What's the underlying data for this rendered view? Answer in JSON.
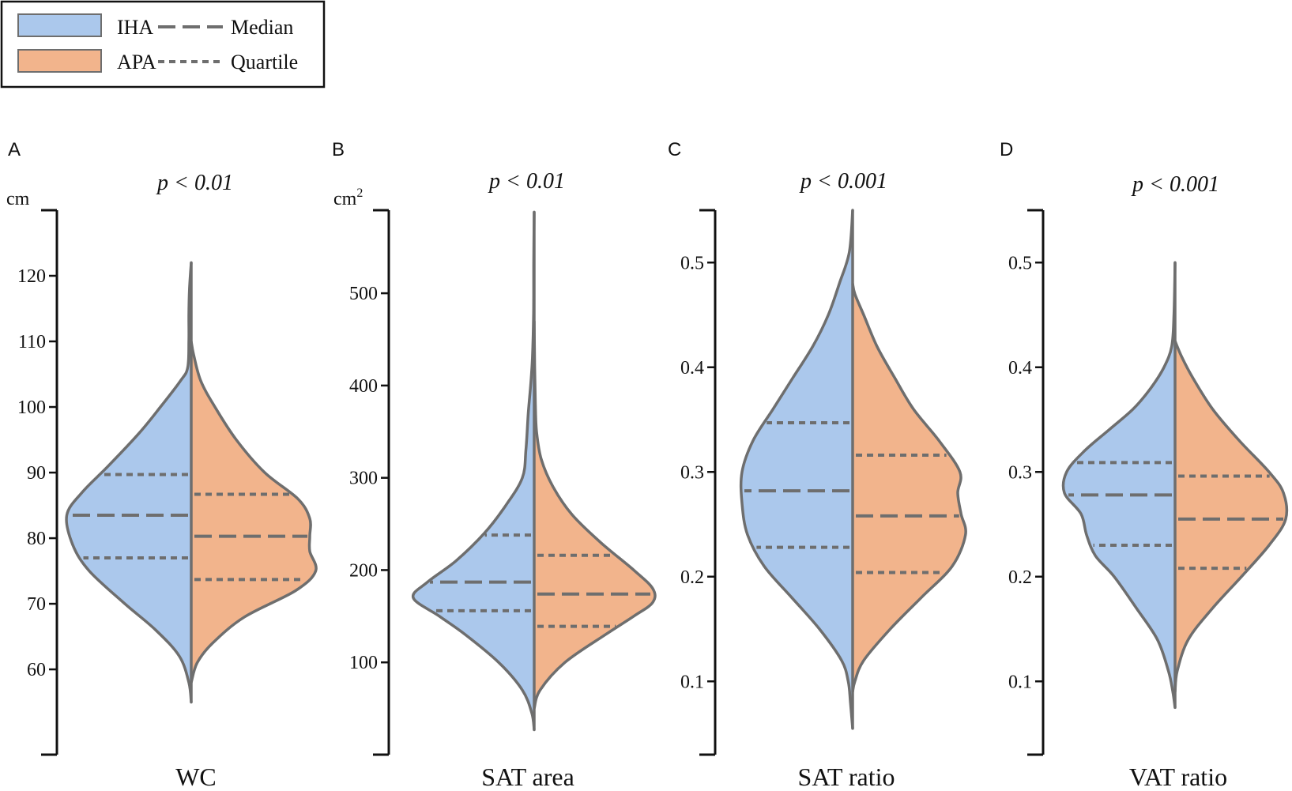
{
  "legend": {
    "entries": [
      {
        "label": "IHA",
        "kind": "patch",
        "color": "#abc8ec"
      },
      {
        "label": "APA",
        "kind": "patch",
        "color": "#f2b48c"
      },
      {
        "label": "Median",
        "kind": "line",
        "dash": "long"
      },
      {
        "label": "Quartile",
        "kind": "line",
        "dash": "short"
      }
    ]
  },
  "colors": {
    "IHA": "#abc8ec",
    "APA": "#f2b48c",
    "outline": "#6e6e6e",
    "axis": "#111111"
  },
  "chart_data": [
    {
      "panel": "A",
      "type": "violin",
      "title": "p < 0.01",
      "xlabel": "WC",
      "unit": "cm",
      "unit_sup": "",
      "ylim": [
        47,
        130
      ],
      "yticks": [
        60,
        70,
        80,
        90,
        100,
        110,
        120
      ],
      "tick_labels": [
        "60",
        "70",
        "80",
        "90",
        "100",
        "110",
        "120"
      ],
      "iha": {
        "median": 83.5,
        "q1": 77,
        "q3": 89.7,
        "profile": [
          [
            55,
            0
          ],
          [
            58,
            0.02
          ],
          [
            62,
            0.1
          ],
          [
            66,
            0.3
          ],
          [
            70,
            0.56
          ],
          [
            75,
            0.86
          ],
          [
            79,
            1.0
          ],
          [
            83.5,
            1.05
          ],
          [
            87,
            0.92
          ],
          [
            91,
            0.7
          ],
          [
            96,
            0.44
          ],
          [
            100,
            0.26
          ],
          [
            104,
            0.09
          ],
          [
            106,
            0.03
          ],
          [
            110,
            0.02
          ],
          [
            114,
            0.02
          ],
          [
            118,
            0.015
          ],
          [
            122,
            0
          ]
        ]
      },
      "apa": {
        "median": 80.3,
        "q1": 73.7,
        "q3": 86.7,
        "profile": [
          [
            58,
            0
          ],
          [
            61,
            0.05
          ],
          [
            64,
            0.18
          ],
          [
            68,
            0.45
          ],
          [
            72,
            0.88
          ],
          [
            75,
            1.05
          ],
          [
            78,
            1.0
          ],
          [
            80.3,
            1.0
          ],
          [
            83,
            1.0
          ],
          [
            86,
            0.9
          ],
          [
            90,
            0.62
          ],
          [
            95,
            0.38
          ],
          [
            100,
            0.2
          ],
          [
            104,
            0.08
          ],
          [
            108,
            0.02
          ],
          [
            110,
            0
          ]
        ]
      }
    },
    {
      "panel": "B",
      "type": "violin",
      "title": "p < 0.01",
      "xlabel": "SAT area",
      "unit": "cm",
      "unit_sup": "2",
      "ylim": [
        0,
        590
      ],
      "yticks": [
        100,
        200,
        300,
        400,
        500
      ],
      "tick_labels": [
        "100",
        "200",
        "300",
        "400",
        "500"
      ],
      "iha": {
        "median": 187,
        "q1": 156,
        "q3": 238,
        "profile": [
          [
            27,
            0
          ],
          [
            45,
            0.02
          ],
          [
            70,
            0.1
          ],
          [
            100,
            0.3
          ],
          [
            130,
            0.58
          ],
          [
            150,
            0.8
          ],
          [
            170,
            1.02
          ],
          [
            187,
            0.9
          ],
          [
            210,
            0.66
          ],
          [
            240,
            0.42
          ],
          [
            270,
            0.24
          ],
          [
            300,
            0.1
          ],
          [
            330,
            0.07
          ],
          [
            370,
            0.05
          ],
          [
            400,
            0.03
          ],
          [
            430,
            0.015
          ],
          [
            480,
            0.005
          ],
          [
            530,
            0.004
          ],
          [
            588,
            0
          ]
        ]
      },
      "apa": {
        "median": 174,
        "q1": 139,
        "q3": 216,
        "profile": [
          [
            50,
            0
          ],
          [
            70,
            0.05
          ],
          [
            100,
            0.26
          ],
          [
            130,
            0.6
          ],
          [
            150,
            0.84
          ],
          [
            165,
            1.0
          ],
          [
            180,
            1.0
          ],
          [
            200,
            0.84
          ],
          [
            230,
            0.56
          ],
          [
            260,
            0.32
          ],
          [
            290,
            0.16
          ],
          [
            320,
            0.06
          ],
          [
            350,
            0.02
          ],
          [
            380,
            0.01
          ],
          [
            420,
            0.004
          ],
          [
            470,
            0
          ]
        ]
      }
    },
    {
      "panel": "C",
      "type": "violin",
      "title": "p < 0.001",
      "xlabel": "SAT ratio",
      "unit": "",
      "unit_sup": "",
      "ylim": [
        0.03,
        0.55
      ],
      "yticks": [
        0.1,
        0.2,
        0.3,
        0.4,
        0.5
      ],
      "tick_labels": [
        "0.1",
        "0.2",
        "0.3",
        "0.4",
        "0.5"
      ],
      "iha": {
        "median": 0.282,
        "q1": 0.228,
        "q3": 0.347,
        "profile": [
          [
            0.055,
            0
          ],
          [
            0.08,
            0.02
          ],
          [
            0.1,
            0.04
          ],
          [
            0.12,
            0.1
          ],
          [
            0.15,
            0.3
          ],
          [
            0.18,
            0.55
          ],
          [
            0.21,
            0.8
          ],
          [
            0.24,
            0.95
          ],
          [
            0.27,
            1.0
          ],
          [
            0.3,
            1.0
          ],
          [
            0.33,
            0.9
          ],
          [
            0.36,
            0.72
          ],
          [
            0.39,
            0.54
          ],
          [
            0.42,
            0.36
          ],
          [
            0.45,
            0.22
          ],
          [
            0.48,
            0.12
          ],
          [
            0.51,
            0.03
          ],
          [
            0.55,
            0
          ]
        ]
      },
      "apa": {
        "median": 0.258,
        "q1": 0.204,
        "q3": 0.316,
        "profile": [
          [
            0.09,
            0
          ],
          [
            0.1,
            0.02
          ],
          [
            0.12,
            0.1
          ],
          [
            0.15,
            0.34
          ],
          [
            0.18,
            0.62
          ],
          [
            0.21,
            0.9
          ],
          [
            0.24,
            1.02
          ],
          [
            0.26,
            0.98
          ],
          [
            0.28,
            0.95
          ],
          [
            0.3,
            0.97
          ],
          [
            0.33,
            0.78
          ],
          [
            0.36,
            0.55
          ],
          [
            0.39,
            0.38
          ],
          [
            0.42,
            0.22
          ],
          [
            0.45,
            0.1
          ],
          [
            0.47,
            0.02
          ],
          [
            0.48,
            0
          ]
        ]
      }
    },
    {
      "panel": "D",
      "type": "violin",
      "title": "p < 0.001",
      "xlabel": "VAT ratio",
      "unit": "",
      "unit_sup": "",
      "ylim": [
        0.03,
        0.55
      ],
      "yticks": [
        0.1,
        0.2,
        0.3,
        0.4,
        0.5
      ],
      "tick_labels": [
        "0.1",
        "0.2",
        "0.3",
        "0.4",
        "0.5"
      ],
      "iha": {
        "median": 0.278,
        "q1": 0.23,
        "q3": 0.309,
        "profile": [
          [
            0.075,
            0
          ],
          [
            0.09,
            0.02
          ],
          [
            0.11,
            0.06
          ],
          [
            0.14,
            0.16
          ],
          [
            0.17,
            0.35
          ],
          [
            0.2,
            0.55
          ],
          [
            0.22,
            0.72
          ],
          [
            0.24,
            0.8
          ],
          [
            0.26,
            0.85
          ],
          [
            0.28,
            1.0
          ],
          [
            0.3,
            0.98
          ],
          [
            0.32,
            0.82
          ],
          [
            0.34,
            0.6
          ],
          [
            0.36,
            0.38
          ],
          [
            0.38,
            0.22
          ],
          [
            0.4,
            0.1
          ],
          [
            0.42,
            0.03
          ],
          [
            0.45,
            0.01
          ],
          [
            0.5,
            0
          ]
        ]
      },
      "apa": {
        "median": 0.255,
        "q1": 0.208,
        "q3": 0.296,
        "profile": [
          [
            0.09,
            0
          ],
          [
            0.11,
            0.02
          ],
          [
            0.14,
            0.12
          ],
          [
            0.17,
            0.34
          ],
          [
            0.2,
            0.6
          ],
          [
            0.23,
            0.85
          ],
          [
            0.255,
            1.0
          ],
          [
            0.28,
            0.98
          ],
          [
            0.3,
            0.85
          ],
          [
            0.33,
            0.58
          ],
          [
            0.36,
            0.34
          ],
          [
            0.39,
            0.16
          ],
          [
            0.41,
            0.06
          ],
          [
            0.425,
            0
          ]
        ]
      }
    }
  ]
}
